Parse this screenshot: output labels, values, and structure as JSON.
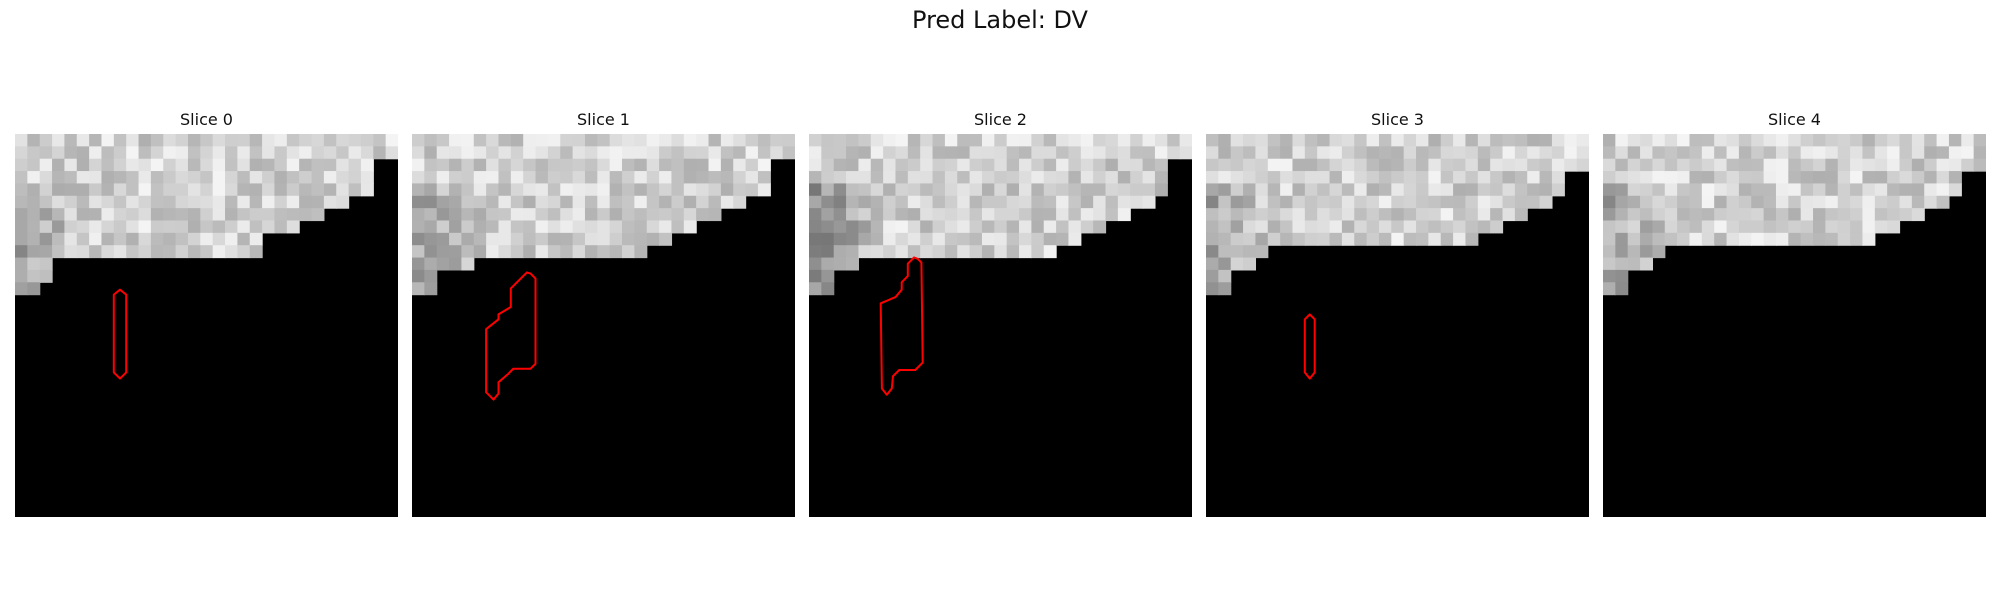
{
  "figure": {
    "title": "Pred Label: DV"
  },
  "panels": [
    {
      "title": "Slice 0",
      "contour": true
    },
    {
      "title": "Slice 1",
      "contour": true
    },
    {
      "title": "Slice 2",
      "contour": true
    },
    {
      "title": "Slice 3",
      "contour": true
    },
    {
      "title": "Slice 4",
      "contour": false
    }
  ],
  "colors": {
    "background": "#000000",
    "contour": "#ff0000"
  }
}
